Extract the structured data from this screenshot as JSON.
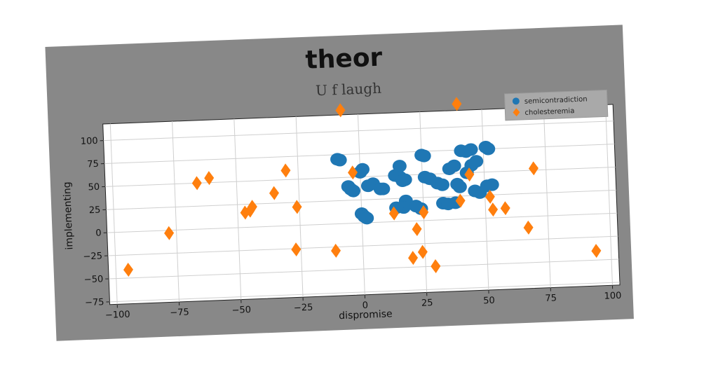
{
  "chart_data": {
    "type": "scatter",
    "title": "theor",
    "subtitle": "U f laugh",
    "xlabel": "dispromise",
    "ylabel": "implementing",
    "xlim": [
      -103,
      103
    ],
    "ylim": [
      -78,
      118
    ],
    "xticks": [
      -100,
      -75,
      -50,
      -25,
      0,
      25,
      50,
      75,
      100
    ],
    "yticks": [
      -75,
      -50,
      -25,
      0,
      25,
      50,
      75,
      100
    ],
    "grid": true,
    "legend_position": "top-right",
    "colors": {
      "frame": "#888888",
      "plot_bg": "#ffffff",
      "grid": "#cfcfcf",
      "legend_bg": "#a9a9a9"
    },
    "series": [
      {
        "name": "semicontradiction",
        "marker": "circle",
        "color": "#1f77b4",
        "points": [
          [
            -9,
            70
          ],
          [
            -8,
            69
          ],
          [
            -5,
            40
          ],
          [
            -4,
            37
          ],
          [
            -3,
            35
          ],
          [
            0,
            55
          ],
          [
            1,
            58
          ],
          [
            0,
            10
          ],
          [
            1,
            7
          ],
          [
            2,
            5
          ],
          [
            3,
            40
          ],
          [
            5,
            42
          ],
          [
            8,
            36
          ],
          [
            9,
            36
          ],
          [
            14,
            50
          ],
          [
            16,
            60
          ],
          [
            16,
            48
          ],
          [
            17,
            44
          ],
          [
            18,
            45
          ],
          [
            18,
            22
          ],
          [
            17,
            15
          ],
          [
            14,
            15
          ],
          [
            22,
            16
          ],
          [
            24,
            13
          ],
          [
            25,
            71
          ],
          [
            26,
            70
          ],
          [
            26,
            47
          ],
          [
            28,
            45
          ],
          [
            31,
            40
          ],
          [
            33,
            38
          ],
          [
            33,
            18
          ],
          [
            35,
            17
          ],
          [
            36,
            55
          ],
          [
            38,
            58
          ],
          [
            38,
            18
          ],
          [
            39,
            38
          ],
          [
            40,
            35
          ],
          [
            41,
            74
          ],
          [
            43,
            73
          ],
          [
            45,
            75
          ],
          [
            47,
            62
          ],
          [
            45,
            58
          ],
          [
            43,
            50
          ],
          [
            46,
            30
          ],
          [
            48,
            28
          ],
          [
            51,
            35
          ],
          [
            53,
            36
          ],
          [
            51,
            77
          ],
          [
            52,
            75
          ]
        ]
      },
      {
        "name": "cholesteremia",
        "marker": "diamond",
        "color": "#ff7f0e",
        "points": [
          [
            -95,
            -41
          ],
          [
            -78,
            -3
          ],
          [
            -66,
            50
          ],
          [
            -61,
            55
          ],
          [
            -47,
            16
          ],
          [
            -45,
            18
          ],
          [
            -44,
            22
          ],
          [
            -35,
            36
          ],
          [
            -30,
            60
          ],
          [
            -26,
            20
          ],
          [
            -27,
            -26
          ],
          [
            -11,
            -29
          ],
          [
            -7,
            123
          ],
          [
            -3,
            55
          ],
          [
            13,
            9
          ],
          [
            20,
            -40
          ],
          [
            24,
            -34
          ],
          [
            22,
            -9
          ],
          [
            25,
            9
          ],
          [
            29,
            -50
          ],
          [
            40,
            125
          ],
          [
            40,
            20
          ],
          [
            44,
            48
          ],
          [
            52,
            23
          ],
          [
            53,
            9
          ],
          [
            58,
            10
          ],
          [
            70,
            52
          ],
          [
            67,
            -12
          ],
          [
            94,
            -40
          ]
        ]
      }
    ]
  }
}
